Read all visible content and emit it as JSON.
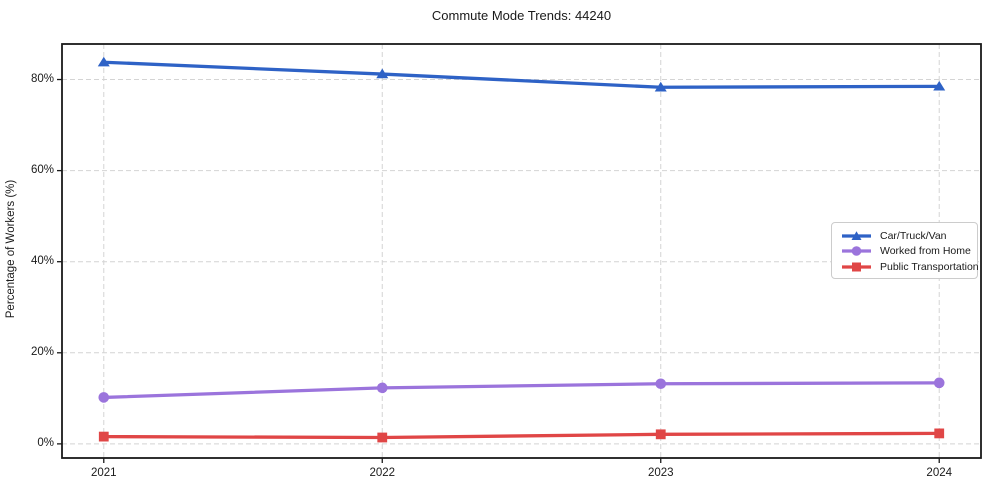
{
  "title": "Commute Mode Trends: 44240",
  "chart_data": {
    "type": "line",
    "title": "Commute Mode Trends: 44240",
    "xlabel": "",
    "ylabel": "Percentage of Workers (%)",
    "x": [
      2021,
      2022,
      2023,
      2024
    ],
    "xticks": [
      "2021",
      "2022",
      "2023",
      "2024"
    ],
    "ytick_values": [
      0,
      20,
      40,
      60,
      80
    ],
    "yticks": [
      "0%",
      "20%",
      "40%",
      "60%",
      "80%"
    ],
    "xlim": [
      2020.85,
      2024.15
    ],
    "ylim": [
      -3.1,
      87.8
    ],
    "grid": true,
    "grid_color": "#d4d4d4",
    "spine_color": "#1a1a1a",
    "legend_position": "center-right",
    "series": [
      {
        "name": "Car/Truck/Van",
        "color": "#2e62c6",
        "marker": "triangle",
        "values": [
          83.8,
          81.2,
          78.3,
          78.5
        ]
      },
      {
        "name": "Worked from Home",
        "color": "#9b74dc",
        "marker": "circle",
        "values": [
          10.2,
          12.3,
          13.2,
          13.4
        ]
      },
      {
        "name": "Public Transportation",
        "color": "#e04646",
        "marker": "square",
        "values": [
          1.6,
          1.4,
          2.1,
          2.3
        ]
      }
    ]
  }
}
